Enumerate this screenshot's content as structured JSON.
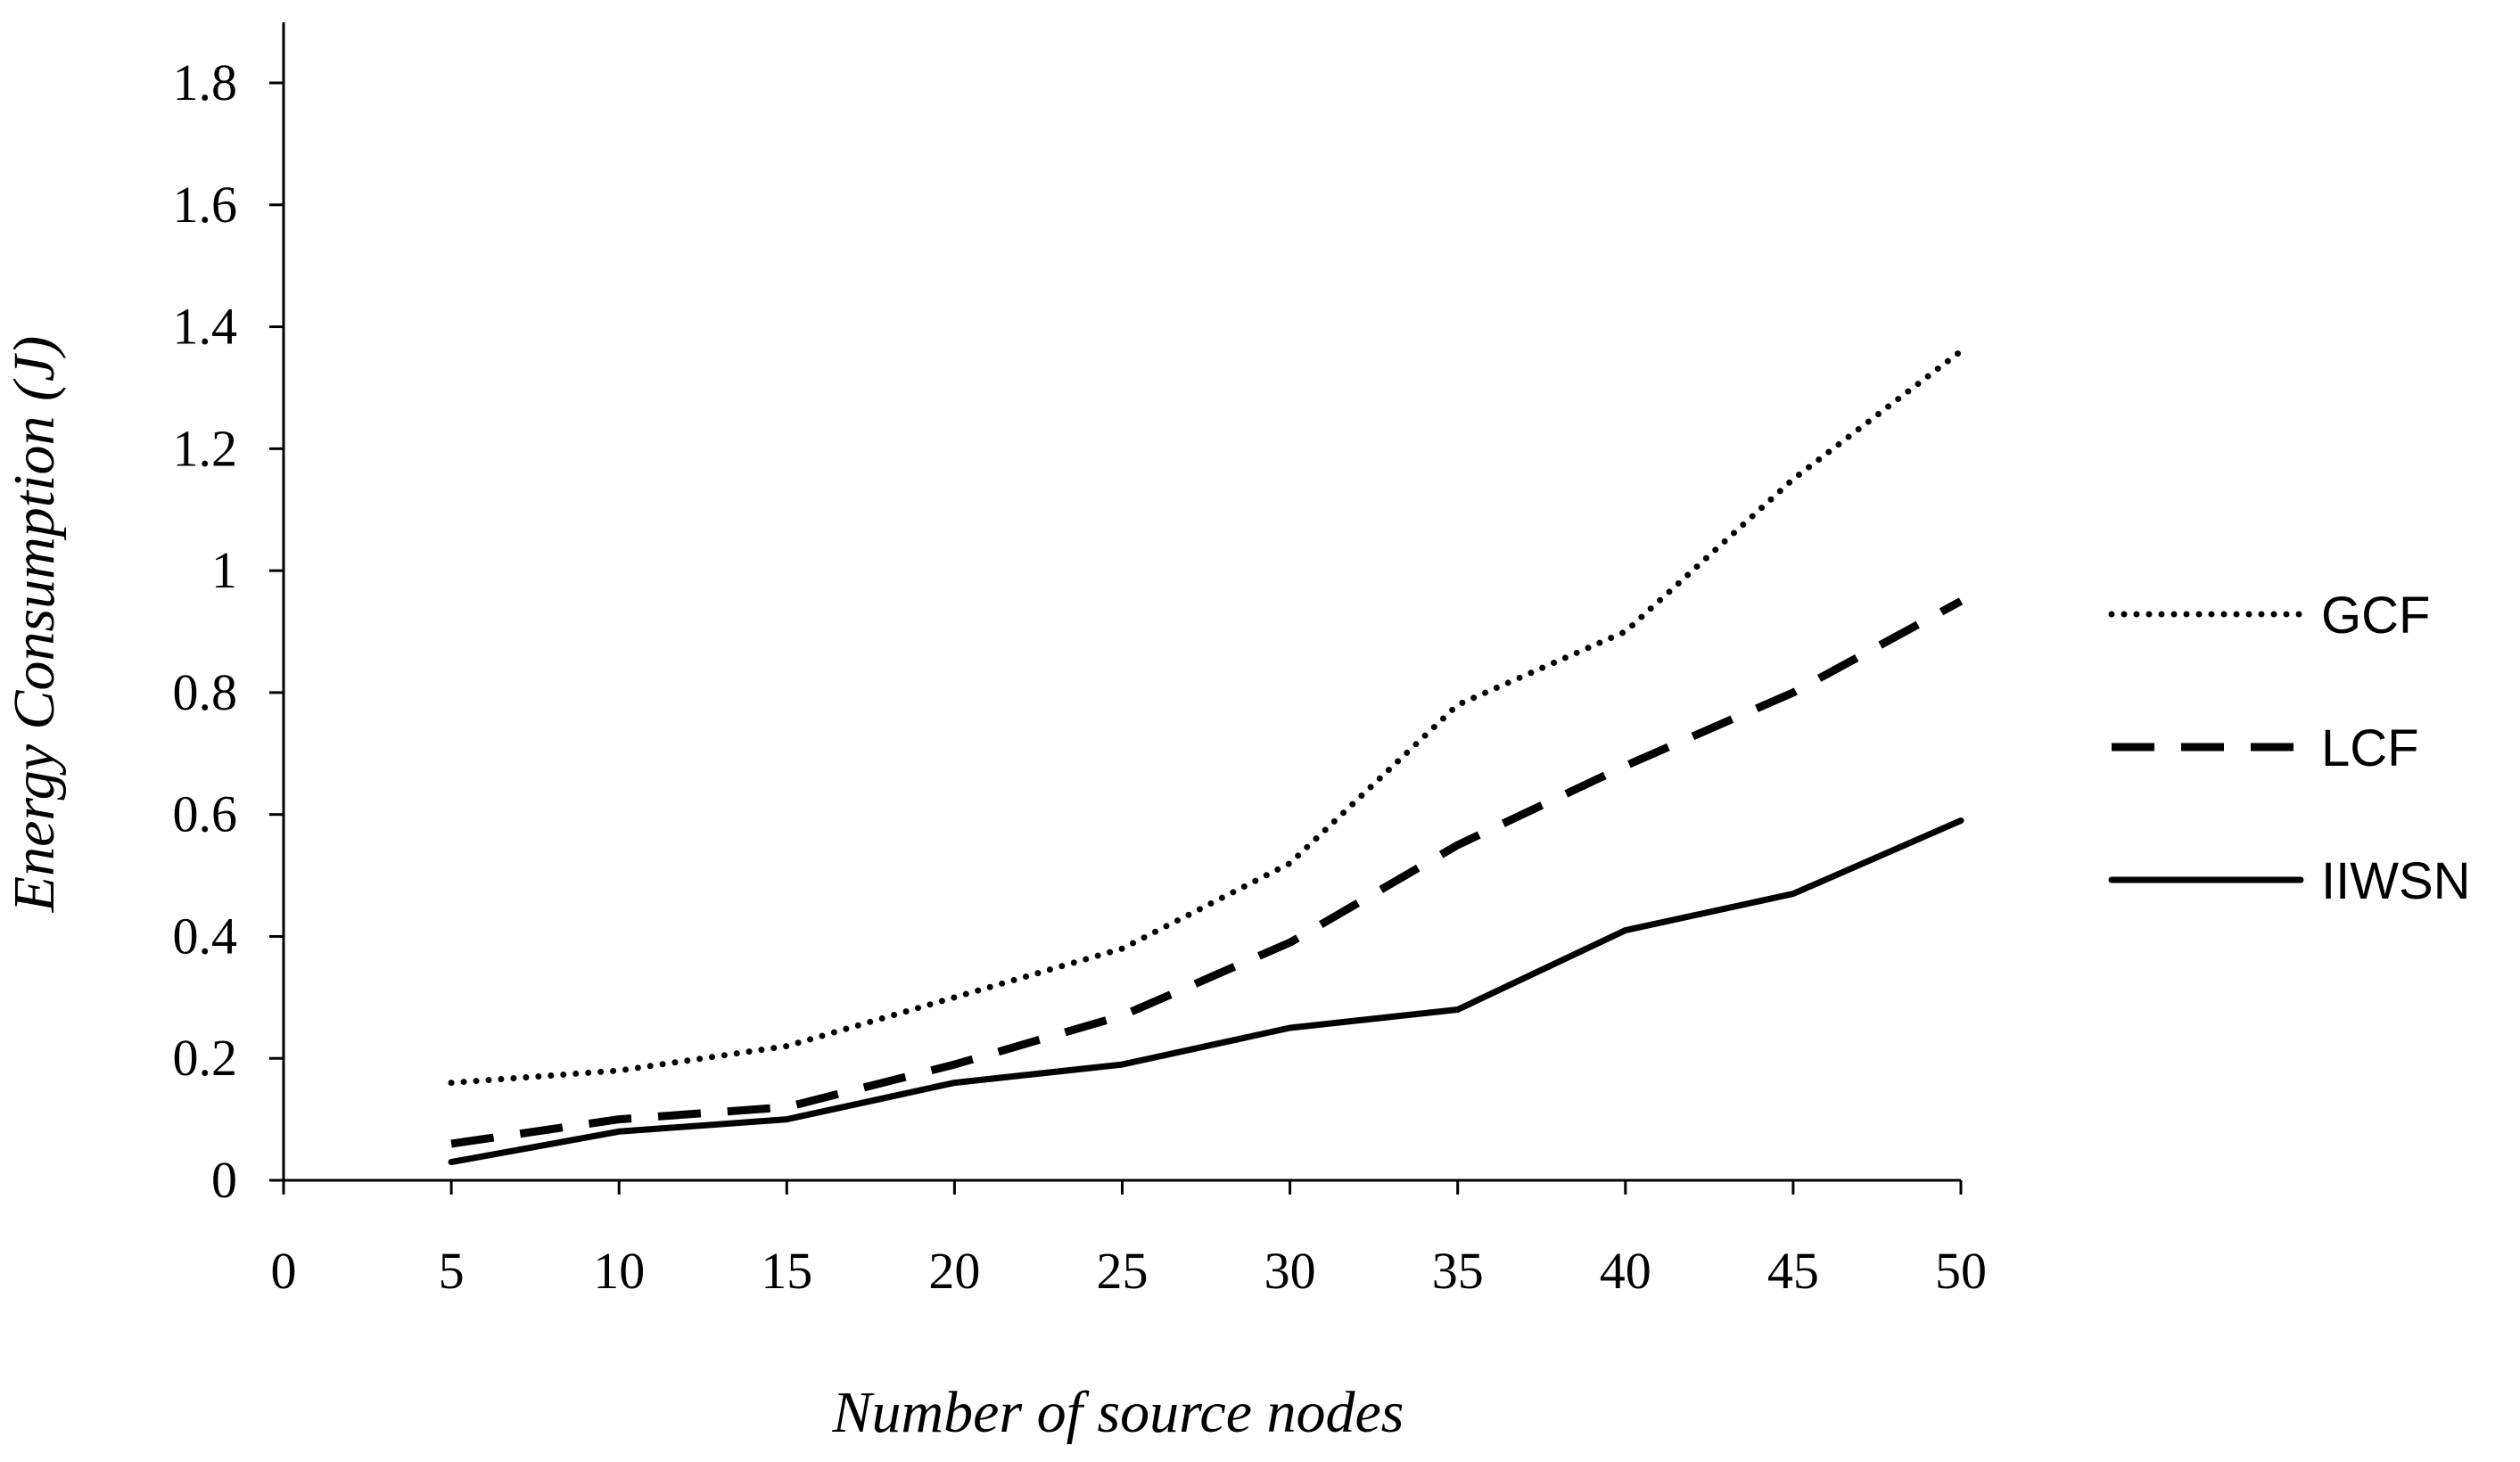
{
  "chart_data": {
    "type": "line",
    "x": [
      5,
      10,
      15,
      20,
      25,
      30,
      35,
      40,
      45,
      50
    ],
    "series": [
      {
        "name": "GCF",
        "values": [
          0.16,
          0.18,
          0.22,
          0.3,
          0.38,
          0.52,
          0.78,
          0.9,
          1.15,
          1.36
        ],
        "style": "dotted",
        "color": "#000000"
      },
      {
        "name": "LCF",
        "values": [
          0.06,
          0.1,
          0.12,
          0.19,
          0.27,
          0.39,
          0.55,
          0.68,
          0.8,
          0.95
        ],
        "style": "dashed",
        "color": "#000000"
      },
      {
        "name": "IIWSN",
        "values": [
          0.03,
          0.08,
          0.1,
          0.16,
          0.19,
          0.25,
          0.28,
          0.41,
          0.47,
          0.59
        ],
        "style": "solid",
        "color": "#000000"
      }
    ],
    "xlabel": "Number of source nodes",
    "ylabel": "Energy Consumption (J)",
    "xlim": [
      0,
      50
    ],
    "ylim": [
      0,
      1.8
    ],
    "x_ticks": [
      0,
      5,
      10,
      15,
      20,
      25,
      30,
      35,
      40,
      45,
      50
    ],
    "x_tick_labels": [
      "0",
      "5",
      "10",
      "15",
      "20",
      "25",
      "30",
      "35",
      "40",
      "45",
      "50"
    ],
    "y_ticks": [
      0,
      0.2,
      0.4,
      0.6,
      0.8,
      1,
      1.2,
      1.4,
      1.6,
      1.8
    ],
    "y_tick_labels": [
      "0",
      "0.2",
      "0.4",
      "0.6",
      "0.8",
      "1",
      "1.2",
      "1.4",
      "1.6",
      "1.8"
    ],
    "grid": false,
    "legend_position": "right"
  }
}
